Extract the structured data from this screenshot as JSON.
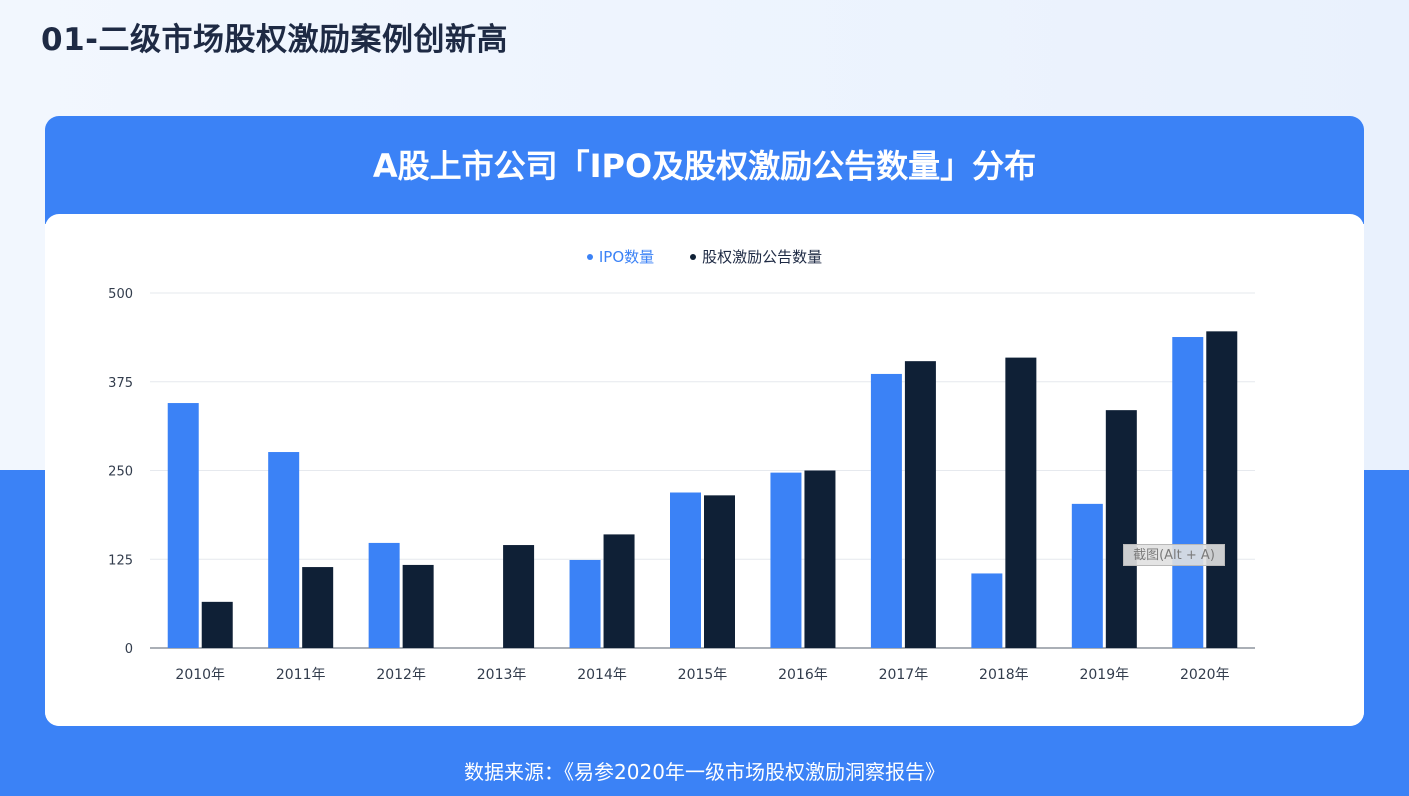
{
  "page": {
    "title": "01-二级市场股权激励案例创新高",
    "source": "数据来源：《易参2020年一级市场股权激励洞察报告》"
  },
  "colors": {
    "accent": "#3b82f6",
    "dark": "#0f2036",
    "title_text": "#1e2a44"
  },
  "overlay": {
    "tooltip": "截图(Alt + A)"
  },
  "chart_data": {
    "type": "bar",
    "title": "A股上市公司「IPO及股权激励公告数量」分布",
    "categories": [
      "2010年",
      "2011年",
      "2012年",
      "2013年",
      "2014年",
      "2015年",
      "2016年",
      "2017年",
      "2018年",
      "2019年",
      "2020年"
    ],
    "series": [
      {
        "name": "IPO数量",
        "color": "#3b82f6",
        "values": [
          345,
          276,
          148,
          0,
          124,
          219,
          247,
          386,
          105,
          203,
          438
        ]
      },
      {
        "name": "股权激励公告数量",
        "color": "#0f2036",
        "values": [
          65,
          114,
          117,
          145,
          160,
          215,
          250,
          404,
          409,
          335,
          446
        ]
      }
    ],
    "yticks": [
      0,
      125,
      250,
      375,
      500
    ],
    "ylim": [
      0,
      500
    ],
    "grid": true,
    "legend": "top-center"
  }
}
